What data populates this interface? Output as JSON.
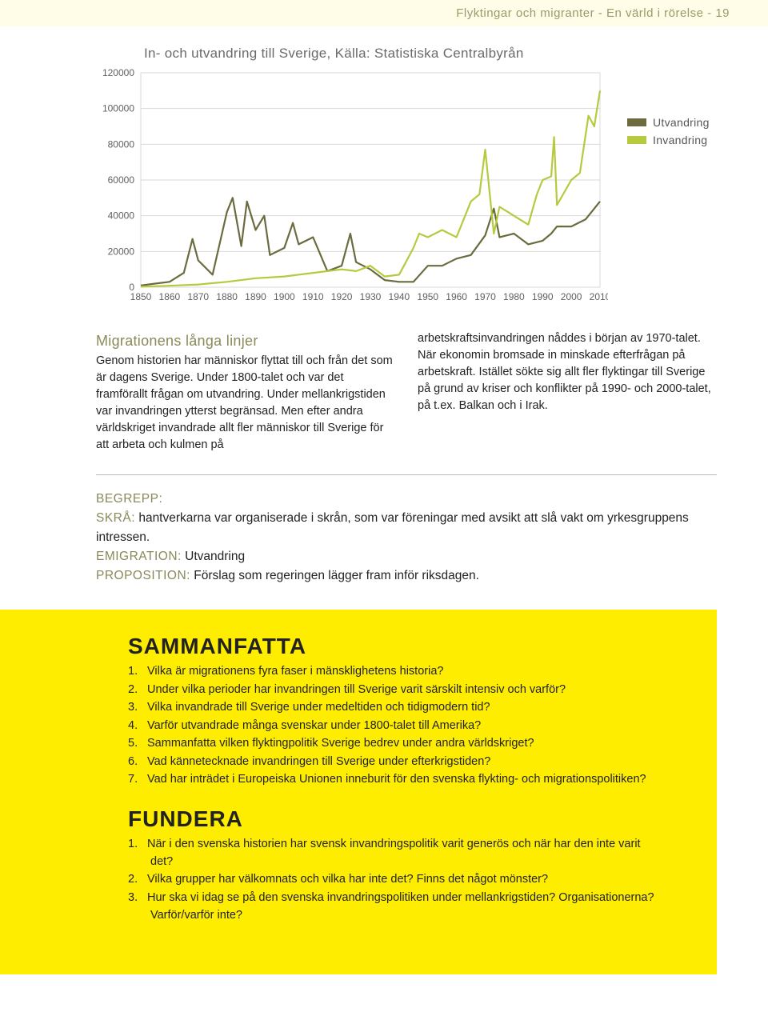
{
  "header": "Flyktingar och migranter - En värld i rörelse - 19",
  "chart": {
    "title": "In- och utvandring till Sverige, Källa: Statistiska Centralbyrån",
    "type": "line",
    "ylim": [
      0,
      120000
    ],
    "ytick_step": 20000,
    "ytick_labels": [
      "0",
      "20000",
      "40000",
      "60000",
      "80000",
      "100000",
      "120000"
    ],
    "xlim": [
      1850,
      2010
    ],
    "xtick_step": 10,
    "xtick_labels": [
      "1850",
      "1860",
      "1870",
      "1880",
      "1890",
      "1900",
      "1910",
      "1920",
      "1930",
      "1940",
      "1950",
      "1960",
      "1970",
      "1980",
      "1990",
      "2000",
      "2010"
    ],
    "background_color": "#ffffff",
    "grid_color": "#d9d9d9",
    "axis_color": "#606060",
    "label_fontsize": 12,
    "label_color": "#606060",
    "line_width": 2.2,
    "series": [
      {
        "name": "Utvandring",
        "color": "#6b6b3f",
        "years": [
          1850,
          1855,
          1860,
          1865,
          1868,
          1870,
          1875,
          1880,
          1882,
          1885,
          1887,
          1890,
          1893,
          1895,
          1900,
          1903,
          1905,
          1910,
          1915,
          1920,
          1923,
          1925,
          1930,
          1935,
          1940,
          1945,
          1950,
          1955,
          1960,
          1965,
          1970,
          1973,
          1975,
          1980,
          1985,
          1990,
          1993,
          1995,
          2000,
          2005,
          2010
        ],
        "values": [
          1000,
          2000,
          3000,
          8000,
          27000,
          15000,
          7000,
          42000,
          50000,
          23000,
          48000,
          32000,
          40000,
          18000,
          22000,
          36000,
          24000,
          28000,
          9000,
          12000,
          30000,
          14000,
          10000,
          4000,
          3000,
          3000,
          12000,
          12000,
          16000,
          18000,
          29000,
          44000,
          28000,
          30000,
          24000,
          26000,
          30000,
          34000,
          34000,
          38000,
          48000
        ]
      },
      {
        "name": "Invandring",
        "color": "#b7c93e",
        "years": [
          1850,
          1860,
          1870,
          1880,
          1890,
          1900,
          1910,
          1920,
          1925,
          1930,
          1935,
          1940,
          1945,
          1947,
          1950,
          1955,
          1960,
          1965,
          1968,
          1970,
          1973,
          1975,
          1980,
          1985,
          1988,
          1990,
          1993,
          1994,
          1995,
          2000,
          2003,
          2006,
          2008,
          2010
        ],
        "values": [
          300,
          800,
          1500,
          3000,
          5000,
          6000,
          8000,
          10000,
          9000,
          12000,
          6000,
          7000,
          22000,
          30000,
          28000,
          32000,
          28000,
          48000,
          52000,
          77000,
          30000,
          45000,
          40000,
          35000,
          52000,
          60000,
          62000,
          84000,
          46000,
          60000,
          64000,
          96000,
          90000,
          110000
        ]
      }
    ]
  },
  "legend": {
    "items": [
      {
        "label": "Utvandring",
        "color": "#6b6b3f"
      },
      {
        "label": "Invandring",
        "color": "#b7c93e"
      }
    ]
  },
  "subhead": "Migrationens långa linjer",
  "para1": "Genom historien har människor flyttat till och från det som är dagens Sverige. Under 1800-talet och var det framförallt frågan om utvandring. Under mellankrigstiden var invandringen ytterst begränsad. Men efter andra världskriget invandrade allt fler människor till Sverige för att arbeta och kulmen på",
  "para2": "arbetskraftsinvandringen nåddes i början av 1970-talet. När ekonomin bromsade in minskade efterfrågan på arbetskraft. Istället sökte sig allt fler flyktingar till Sverige på grund av kriser och konflikter på 1990- och 2000-talet, på t.ex. Balkan och i Irak.",
  "begrepp": {
    "head": "BEGREPP:",
    "skra_term": "SKRÅ:",
    "skra_text": " hantverkarna var organiserade i skrån, som var föreningar med avsikt att slå vakt om yrkesgruppens intressen.",
    "emigration_term": "EMIGRATION:",
    "emigration_text": " Utvandring",
    "proposition_term": "PROPOSITION:",
    "proposition_text": " Förslag som regeringen lägger fram inför riksdagen."
  },
  "sammanfatta": {
    "title": "SAMMANFATTA",
    "items": [
      "Vilka är migrationens fyra faser i mänsklighetens historia?",
      "Under vilka perioder har invandringen till Sverige varit särskilt intensiv och varför?",
      "Vilka invandrade till Sverige under medeltiden och tidigmodern tid?",
      "Varför utvandrade många svenskar under 1800-talet till Amerika?",
      "Sammanfatta vilken flyktingpolitik Sverige bedrev under andra världskriget?",
      "Vad kännetecknade invandringen till Sverige under efterkrigstiden?",
      "Vad har inträdet i Europeiska Unionen inneburit för den svenska flykting- och migrationspolitiken?"
    ]
  },
  "fundera": {
    "title": "FUNDERA",
    "items": [
      "När i den svenska historien har svensk invandringspolitik varit generös och när har den inte varit det?",
      "Vilka grupper har välkomnats och vilka har inte det? Finns det något mönster?",
      "Hur ska vi idag se på den svenska invandringspolitiken under mellankrigstiden? Organisationerna? Varför/varför inte?"
    ]
  }
}
